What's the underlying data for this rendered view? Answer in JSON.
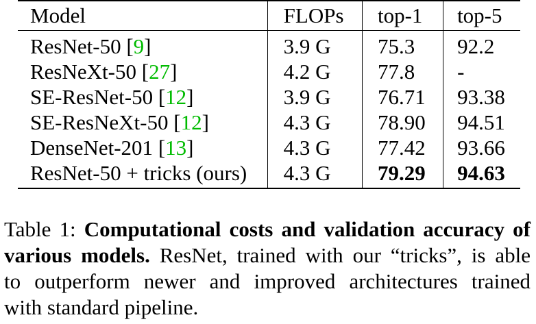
{
  "table": {
    "headers": [
      "Model",
      "FLOPs",
      "top-1",
      "top-5"
    ],
    "rows": [
      {
        "model": "ResNet-50",
        "ref": "9",
        "flops": "3.9 G",
        "top1": "75.3",
        "top5": "92.2"
      },
      {
        "model": "ResNeXt-50",
        "ref": "27",
        "flops": "4.2 G",
        "top1": "77.8",
        "top5": "-"
      },
      {
        "model": "SE-ResNet-50",
        "ref": "12",
        "flops": "3.9 G",
        "top1": "76.71",
        "top5": "93.38"
      },
      {
        "model": "SE-ResNeXt-50",
        "ref": "12",
        "flops": "4.3 G",
        "top1": "78.90",
        "top5": "94.51"
      },
      {
        "model": "DenseNet-201",
        "ref": "13",
        "flops": "4.3 G",
        "top1": "77.42",
        "top5": "93.66"
      },
      {
        "model": "ResNet-50 + tricks (ours)",
        "flops": "4.3 G",
        "top1": "79.29",
        "top5": "94.63"
      }
    ]
  },
  "caption": {
    "label": "Table 1:",
    "bold_line1": "Computational costs and validation accuracy of",
    "bold_line2": "various models.",
    "text_line2": "ResNet, trained with our “tricks”, is able",
    "text_line3": "to outperform newer and improved architectures trained",
    "text_line4": "with standard pipeline."
  },
  "colors": {
    "reference_link": "#00bb00",
    "text": "#000000"
  }
}
